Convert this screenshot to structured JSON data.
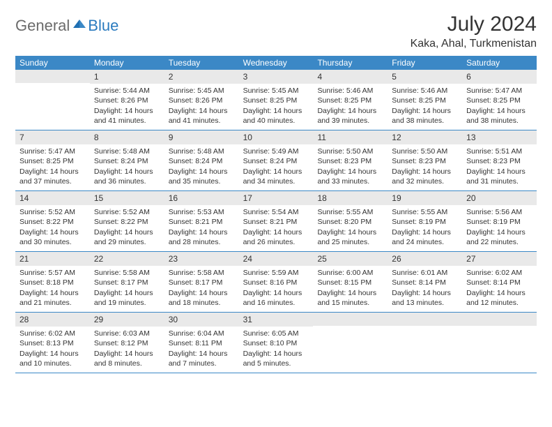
{
  "logo": {
    "general": "General",
    "blue": "Blue"
  },
  "title": "July 2024",
  "location": "Kaka, Ahal, Turkmenistan",
  "colors": {
    "header_bg": "#3b88c6",
    "daynum_bg": "#e9e9e9",
    "text": "#333333",
    "logo_gray": "#6b6b6b",
    "logo_blue": "#2b7bbf"
  },
  "weekdays": [
    "Sunday",
    "Monday",
    "Tuesday",
    "Wednesday",
    "Thursday",
    "Friday",
    "Saturday"
  ],
  "weeks": [
    [
      {
        "day": "",
        "sunrise": "",
        "sunset": "",
        "daylight": ""
      },
      {
        "day": "1",
        "sunrise": "Sunrise: 5:44 AM",
        "sunset": "Sunset: 8:26 PM",
        "daylight": "Daylight: 14 hours and 41 minutes."
      },
      {
        "day": "2",
        "sunrise": "Sunrise: 5:45 AM",
        "sunset": "Sunset: 8:26 PM",
        "daylight": "Daylight: 14 hours and 41 minutes."
      },
      {
        "day": "3",
        "sunrise": "Sunrise: 5:45 AM",
        "sunset": "Sunset: 8:25 PM",
        "daylight": "Daylight: 14 hours and 40 minutes."
      },
      {
        "day": "4",
        "sunrise": "Sunrise: 5:46 AM",
        "sunset": "Sunset: 8:25 PM",
        "daylight": "Daylight: 14 hours and 39 minutes."
      },
      {
        "day": "5",
        "sunrise": "Sunrise: 5:46 AM",
        "sunset": "Sunset: 8:25 PM",
        "daylight": "Daylight: 14 hours and 38 minutes."
      },
      {
        "day": "6",
        "sunrise": "Sunrise: 5:47 AM",
        "sunset": "Sunset: 8:25 PM",
        "daylight": "Daylight: 14 hours and 38 minutes."
      }
    ],
    [
      {
        "day": "7",
        "sunrise": "Sunrise: 5:47 AM",
        "sunset": "Sunset: 8:25 PM",
        "daylight": "Daylight: 14 hours and 37 minutes."
      },
      {
        "day": "8",
        "sunrise": "Sunrise: 5:48 AM",
        "sunset": "Sunset: 8:24 PM",
        "daylight": "Daylight: 14 hours and 36 minutes."
      },
      {
        "day": "9",
        "sunrise": "Sunrise: 5:48 AM",
        "sunset": "Sunset: 8:24 PM",
        "daylight": "Daylight: 14 hours and 35 minutes."
      },
      {
        "day": "10",
        "sunrise": "Sunrise: 5:49 AM",
        "sunset": "Sunset: 8:24 PM",
        "daylight": "Daylight: 14 hours and 34 minutes."
      },
      {
        "day": "11",
        "sunrise": "Sunrise: 5:50 AM",
        "sunset": "Sunset: 8:23 PM",
        "daylight": "Daylight: 14 hours and 33 minutes."
      },
      {
        "day": "12",
        "sunrise": "Sunrise: 5:50 AM",
        "sunset": "Sunset: 8:23 PM",
        "daylight": "Daylight: 14 hours and 32 minutes."
      },
      {
        "day": "13",
        "sunrise": "Sunrise: 5:51 AM",
        "sunset": "Sunset: 8:23 PM",
        "daylight": "Daylight: 14 hours and 31 minutes."
      }
    ],
    [
      {
        "day": "14",
        "sunrise": "Sunrise: 5:52 AM",
        "sunset": "Sunset: 8:22 PM",
        "daylight": "Daylight: 14 hours and 30 minutes."
      },
      {
        "day": "15",
        "sunrise": "Sunrise: 5:52 AM",
        "sunset": "Sunset: 8:22 PM",
        "daylight": "Daylight: 14 hours and 29 minutes."
      },
      {
        "day": "16",
        "sunrise": "Sunrise: 5:53 AM",
        "sunset": "Sunset: 8:21 PM",
        "daylight": "Daylight: 14 hours and 28 minutes."
      },
      {
        "day": "17",
        "sunrise": "Sunrise: 5:54 AM",
        "sunset": "Sunset: 8:21 PM",
        "daylight": "Daylight: 14 hours and 26 minutes."
      },
      {
        "day": "18",
        "sunrise": "Sunrise: 5:55 AM",
        "sunset": "Sunset: 8:20 PM",
        "daylight": "Daylight: 14 hours and 25 minutes."
      },
      {
        "day": "19",
        "sunrise": "Sunrise: 5:55 AM",
        "sunset": "Sunset: 8:19 PM",
        "daylight": "Daylight: 14 hours and 24 minutes."
      },
      {
        "day": "20",
        "sunrise": "Sunrise: 5:56 AM",
        "sunset": "Sunset: 8:19 PM",
        "daylight": "Daylight: 14 hours and 22 minutes."
      }
    ],
    [
      {
        "day": "21",
        "sunrise": "Sunrise: 5:57 AM",
        "sunset": "Sunset: 8:18 PM",
        "daylight": "Daylight: 14 hours and 21 minutes."
      },
      {
        "day": "22",
        "sunrise": "Sunrise: 5:58 AM",
        "sunset": "Sunset: 8:17 PM",
        "daylight": "Daylight: 14 hours and 19 minutes."
      },
      {
        "day": "23",
        "sunrise": "Sunrise: 5:58 AM",
        "sunset": "Sunset: 8:17 PM",
        "daylight": "Daylight: 14 hours and 18 minutes."
      },
      {
        "day": "24",
        "sunrise": "Sunrise: 5:59 AM",
        "sunset": "Sunset: 8:16 PM",
        "daylight": "Daylight: 14 hours and 16 minutes."
      },
      {
        "day": "25",
        "sunrise": "Sunrise: 6:00 AM",
        "sunset": "Sunset: 8:15 PM",
        "daylight": "Daylight: 14 hours and 15 minutes."
      },
      {
        "day": "26",
        "sunrise": "Sunrise: 6:01 AM",
        "sunset": "Sunset: 8:14 PM",
        "daylight": "Daylight: 14 hours and 13 minutes."
      },
      {
        "day": "27",
        "sunrise": "Sunrise: 6:02 AM",
        "sunset": "Sunset: 8:14 PM",
        "daylight": "Daylight: 14 hours and 12 minutes."
      }
    ],
    [
      {
        "day": "28",
        "sunrise": "Sunrise: 6:02 AM",
        "sunset": "Sunset: 8:13 PM",
        "daylight": "Daylight: 14 hours and 10 minutes."
      },
      {
        "day": "29",
        "sunrise": "Sunrise: 6:03 AM",
        "sunset": "Sunset: 8:12 PM",
        "daylight": "Daylight: 14 hours and 8 minutes."
      },
      {
        "day": "30",
        "sunrise": "Sunrise: 6:04 AM",
        "sunset": "Sunset: 8:11 PM",
        "daylight": "Daylight: 14 hours and 7 minutes."
      },
      {
        "day": "31",
        "sunrise": "Sunrise: 6:05 AM",
        "sunset": "Sunset: 8:10 PM",
        "daylight": "Daylight: 14 hours and 5 minutes."
      },
      {
        "day": "",
        "sunrise": "",
        "sunset": "",
        "daylight": ""
      },
      {
        "day": "",
        "sunrise": "",
        "sunset": "",
        "daylight": ""
      },
      {
        "day": "",
        "sunrise": "",
        "sunset": "",
        "daylight": ""
      }
    ]
  ]
}
